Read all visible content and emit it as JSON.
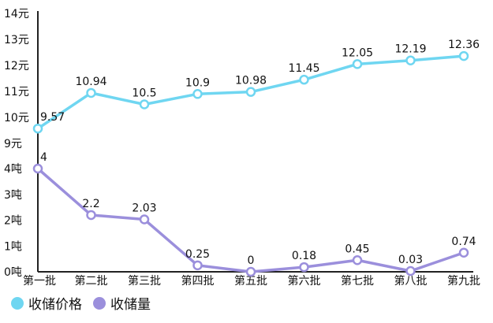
{
  "chart_data": {
    "type": "line",
    "categories": [
      "第一批",
      "第二批",
      "第三批",
      "第四批",
      "第五批",
      "第六批",
      "第七批",
      "第八批",
      "第九批"
    ],
    "price_axis": {
      "ticks": [
        "9元",
        "10元",
        "11元",
        "12元",
        "13元",
        "14元"
      ],
      "range": [
        9,
        14
      ]
    },
    "volume_axis": {
      "ticks": [
        "0吨",
        "1吨",
        "2吨",
        "3吨",
        "4吨"
      ],
      "range": [
        0,
        4
      ]
    },
    "series": [
      {
        "name": "收储价格",
        "color": "#6fd6f1",
        "values": [
          9.57,
          10.94,
          10.5,
          10.9,
          10.98,
          11.45,
          12.05,
          12.19,
          12.36
        ],
        "labels": [
          "9.57",
          "10.94",
          "10.5",
          "10.9",
          "10.98",
          "11.45",
          "12.05",
          "12.19",
          "12.36"
        ]
      },
      {
        "name": "收储量",
        "color": "#9b8fdc",
        "values": [
          4,
          2.2,
          2.03,
          0.25,
          0,
          0.18,
          0.45,
          0.03,
          0.74
        ],
        "labels": [
          "4",
          "2.2",
          "2.03",
          "0.25",
          "0",
          "0.18",
          "0.45",
          "0.03",
          "0.74"
        ]
      }
    ],
    "legend_position": "bottom-left"
  }
}
